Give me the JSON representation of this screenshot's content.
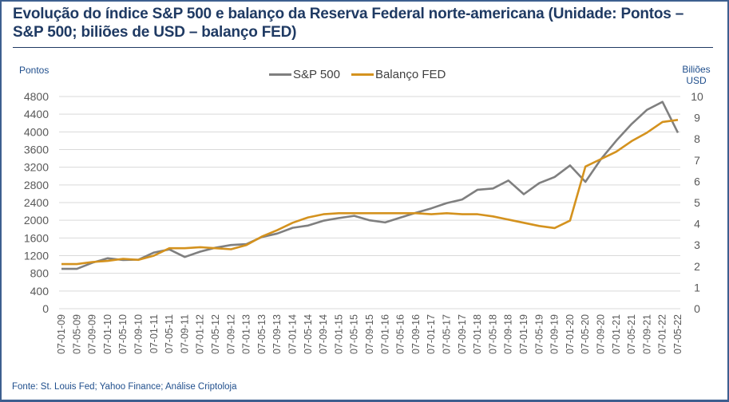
{
  "title": "Evolução do índice S&P 500 e balanço da Reserva Federal norte-americana (Unidade: Pontos – S&P 500; biliões de USD – balanço FED)",
  "source": "Fonte: St. Louis Fed; Yahoo Finance; Análise Criptoloja",
  "left_axis_title": "Pontos",
  "right_axis_title_line1": "Biliões",
  "right_axis_title_line2": "USD",
  "colors": {
    "sp500": "#7f7f7f",
    "fed": "#d4921e",
    "grid": "#d9d9d9",
    "title": "#1f3a63",
    "frame": "#3d5f8f"
  },
  "chart_data": {
    "type": "line",
    "title": "Evolução do índice S&P 500 e balanço da Reserva Federal norte-americana",
    "xlabel": "",
    "ylabel": "Pontos",
    "y2label": "Biliões USD",
    "ylim": [
      0,
      4800
    ],
    "y2lim": [
      0,
      10
    ],
    "yticks": [
      0,
      400,
      800,
      1200,
      1600,
      2000,
      2400,
      2800,
      3200,
      3600,
      4000,
      4400,
      4800
    ],
    "y2ticks": [
      0,
      1,
      2,
      3,
      4,
      5,
      6,
      7,
      8,
      9,
      10
    ],
    "grid": true,
    "legend": "top-center",
    "categories": [
      "07-01-09",
      "07-05-09",
      "07-09-09",
      "07-01-10",
      "07-05-10",
      "07-09-10",
      "07-01-11",
      "07-05-11",
      "07-09-11",
      "07-01-12",
      "07-05-12",
      "07-09-12",
      "07-01-13",
      "07-05-13",
      "07-09-13",
      "07-01-14",
      "07-05-14",
      "07-09-14",
      "07-01-15",
      "07-05-15",
      "07-09-15",
      "07-01-16",
      "07-05-16",
      "07-09-16",
      "07-01-17",
      "07-05-17",
      "07-09-17",
      "07-01-18",
      "07-05-18",
      "07-09-18",
      "07-01-19",
      "07-05-19",
      "07-09-19",
      "07-01-20",
      "07-05-20",
      "07-09-20",
      "07-01-21",
      "07-05-21",
      "07-09-21",
      "07-01-22",
      "07-05-22"
    ],
    "series": [
      {
        "name": "S&P 500",
        "axis": "left",
        "values": [
          900,
          900,
          1040,
          1140,
          1100,
          1110,
          1270,
          1340,
          1170,
          1290,
          1380,
          1440,
          1460,
          1620,
          1700,
          1830,
          1880,
          1990,
          2050,
          2100,
          2000,
          1950,
          2060,
          2170,
          2270,
          2390,
          2470,
          2690,
          2720,
          2900,
          2590,
          2840,
          2980,
          3240,
          2870,
          3380,
          3800,
          4180,
          4500,
          4680,
          3980
        ]
      },
      {
        "name": "Balanço FED",
        "axis": "right",
        "values": [
          2.1,
          2.1,
          2.2,
          2.25,
          2.35,
          2.3,
          2.5,
          2.85,
          2.85,
          2.9,
          2.85,
          2.8,
          3.0,
          3.4,
          3.7,
          4.05,
          4.3,
          4.45,
          4.5,
          4.5,
          4.5,
          4.5,
          4.5,
          4.5,
          4.45,
          4.5,
          4.45,
          4.45,
          4.35,
          4.2,
          4.05,
          3.9,
          3.8,
          4.15,
          6.7,
          7.05,
          7.4,
          7.9,
          8.3,
          8.8,
          8.9
        ]
      }
    ]
  }
}
